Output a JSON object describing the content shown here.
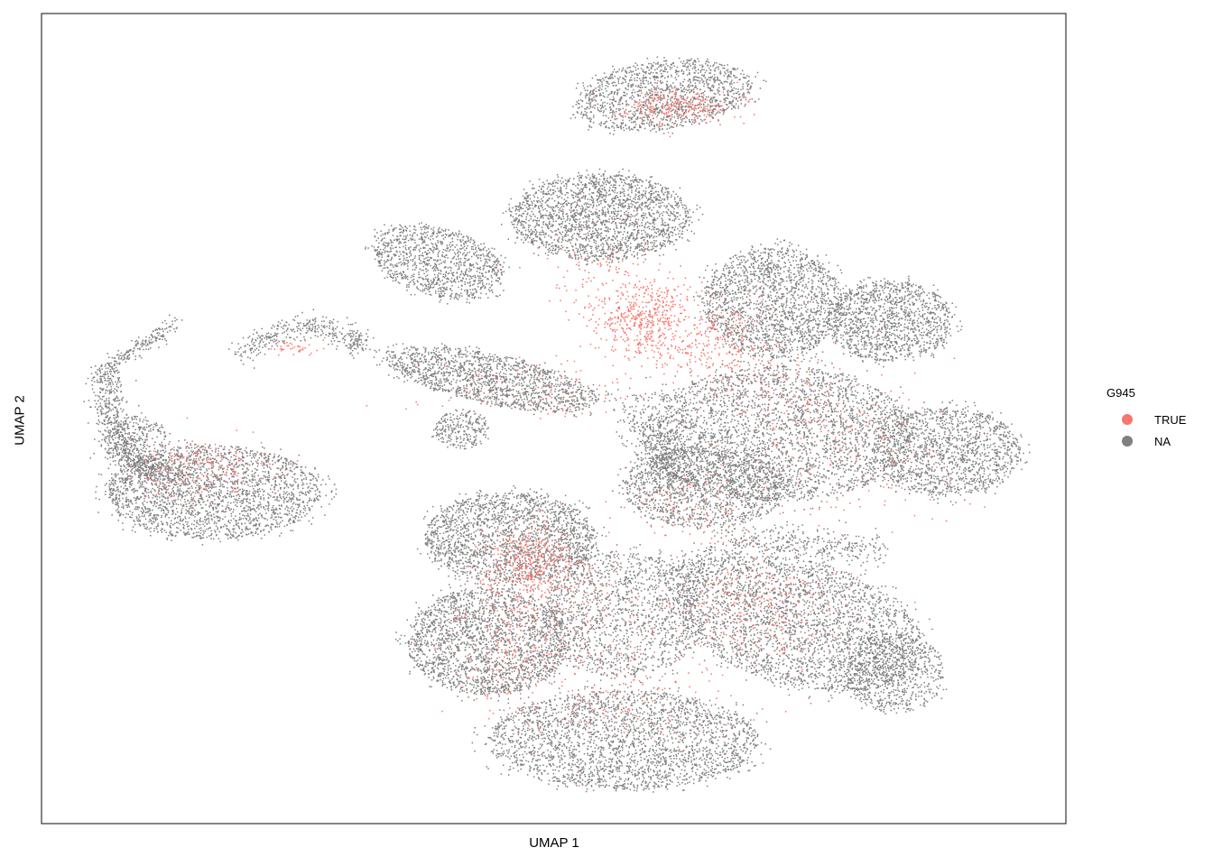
{
  "chart_data": {
    "type": "scatter",
    "title": "",
    "xlabel": "UMAP 1",
    "ylabel": "UMAP 2",
    "grid": false,
    "axis_ticks": false,
    "legend": {
      "title": "G945",
      "placement": "right",
      "entries": [
        {
          "label": "TRUE",
          "color": "#F8766D"
        },
        {
          "label": "NA",
          "color": "#7F7F7F"
        }
      ]
    },
    "colors": {
      "TRUE": "#F8766D",
      "NA": "#7F7F7F",
      "frame": "#333333"
    },
    "series": [
      {
        "name": "NA",
        "color": "#7F7F7F",
        "role": "background cells (most points)"
      },
      {
        "name": "TRUE",
        "color": "#F8766D",
        "role": "highlighted cells (minority)"
      }
    ]
  }
}
